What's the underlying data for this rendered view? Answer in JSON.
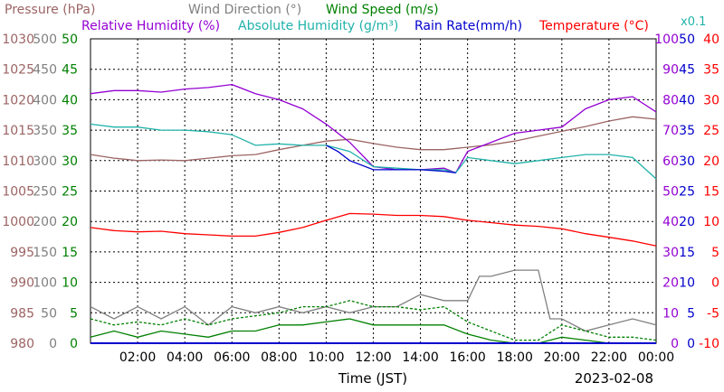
{
  "chart_data": {
    "type": "line",
    "date": "2023-02-08",
    "xlabel": "Time (JST)",
    "x_ticks": [
      "02:00",
      "04:00",
      "06:00",
      "08:00",
      "10:00",
      "12:00",
      "14:00",
      "16:00",
      "18:00",
      "20:00",
      "22:00",
      "00:00"
    ],
    "x_range": [
      0,
      24
    ],
    "grid": true,
    "legend": {
      "row1": [
        "Pressure (hPa)",
        "Wind Direction (°)",
        "Wind Speed (m/s)"
      ],
      "row2": [
        "Relative Humidity (%)",
        "Absolute Humidity (g/m³)",
        "Rain Rate(mm/h)",
        "Temperature (°C)"
      ],
      "abs_humidity_scale": "x0.1"
    },
    "axes": {
      "pressure": {
        "color": "#9c6464",
        "ticks": [
          "1030",
          "1025",
          "1020",
          "1015",
          "1010",
          "1005",
          "1000",
          "995",
          "990",
          "985",
          "980"
        ],
        "range": [
          980,
          1030
        ]
      },
      "wind_dir": {
        "color": "#808080",
        "ticks": [
          "500",
          "450",
          "400",
          "350",
          "300",
          "250",
          "200",
          "150",
          "100",
          "50",
          "0"
        ],
        "range": [
          0,
          500
        ]
      },
      "wind_speed": {
        "color": "#008000",
        "ticks": [
          "50",
          "45",
          "40",
          "35",
          "30",
          "25",
          "20",
          "15",
          "10",
          "5",
          "0"
        ],
        "range": [
          0,
          50
        ]
      },
      "rel_humidity": {
        "color": "#9400d3",
        "ticks": [
          "100",
          "90",
          "80",
          "70",
          "60",
          "50",
          "40",
          "30",
          "20",
          "10",
          "0"
        ],
        "range": [
          0,
          100
        ]
      },
      "rain_rate": {
        "color": "#0000cd",
        "ticks": [
          "50",
          "45",
          "40",
          "35",
          "30",
          "25",
          "20",
          "15",
          "10",
          "5",
          "0"
        ],
        "range": [
          0,
          50
        ]
      },
      "temperature": {
        "color": "#ff0000",
        "ticks": [
          "40",
          "35",
          "30",
          "25",
          "20",
          "15",
          "10",
          "5",
          "0",
          "-5",
          "-10"
        ],
        "range": [
          -10,
          40
        ]
      }
    },
    "series": [
      {
        "name": "Pressure (hPa)",
        "color": "#9c6464",
        "unit": "hPa",
        "points": [
          [
            0,
            1011
          ],
          [
            1,
            1010.4
          ],
          [
            2,
            1010
          ],
          [
            3,
            1010.1
          ],
          [
            4,
            1010
          ],
          [
            5,
            1010.4
          ],
          [
            6,
            1010.8
          ],
          [
            7,
            1011
          ],
          [
            8,
            1011.8
          ],
          [
            9,
            1012.5
          ],
          [
            10,
            1013.2
          ],
          [
            11,
            1013.5
          ],
          [
            12,
            1012.8
          ],
          [
            13,
            1012.2
          ],
          [
            14,
            1011.8
          ],
          [
            15,
            1011.8
          ],
          [
            16,
            1012.2
          ],
          [
            17,
            1012.6
          ],
          [
            18,
            1013.2
          ],
          [
            19,
            1014
          ],
          [
            20,
            1014.8
          ],
          [
            21,
            1015.6
          ],
          [
            22,
            1016.5
          ],
          [
            23,
            1017.2
          ],
          [
            24,
            1016.8
          ]
        ]
      },
      {
        "name": "Relative Humidity (%)",
        "color": "#9400d3",
        "unit": "%",
        "points": [
          [
            0,
            82
          ],
          [
            1,
            83
          ],
          [
            2,
            83
          ],
          [
            3,
            82.5
          ],
          [
            4,
            83.5
          ],
          [
            5,
            84
          ],
          [
            6,
            85
          ],
          [
            7,
            82
          ],
          [
            8,
            80
          ],
          [
            9,
            77
          ],
          [
            10,
            72
          ],
          [
            11,
            66
          ],
          [
            12,
            58
          ],
          [
            13,
            57
          ],
          [
            14,
            57
          ],
          [
            15,
            57.5
          ],
          [
            15.5,
            56
          ],
          [
            16,
            63
          ],
          [
            17,
            66
          ],
          [
            18,
            69
          ],
          [
            19,
            70
          ],
          [
            20,
            71
          ],
          [
            21,
            77
          ],
          [
            22,
            80
          ],
          [
            23,
            81
          ],
          [
            24,
            76
          ]
        ]
      },
      {
        "name": "Absolute Humidity (g/m³)",
        "color": "#20b2aa",
        "unit": "g/m³ x0.1",
        "points": [
          [
            0,
            72
          ],
          [
            1,
            71
          ],
          [
            2,
            71
          ],
          [
            3,
            70
          ],
          [
            4,
            70
          ],
          [
            5,
            69.5
          ],
          [
            6,
            68.5
          ],
          [
            7,
            65
          ],
          [
            8,
            65.5
          ],
          [
            9,
            65
          ],
          [
            10,
            65
          ],
          [
            11,
            63
          ],
          [
            12,
            58
          ],
          [
            13,
            57.5
          ],
          [
            14,
            57
          ],
          [
            15,
            57
          ],
          [
            15.5,
            56
          ],
          [
            16,
            61
          ],
          [
            17,
            60
          ],
          [
            18,
            59
          ],
          [
            19,
            60
          ],
          [
            20,
            61
          ],
          [
            21,
            62
          ],
          [
            22,
            62
          ],
          [
            23,
            61
          ],
          [
            24,
            54
          ]
        ]
      },
      {
        "name": "Rain Rate(mm/h)",
        "color": "#0000cd",
        "unit": "mm/h",
        "points": [
          [
            10,
            65
          ],
          [
            10.5,
            63
          ],
          [
            11,
            60
          ],
          [
            12,
            57
          ],
          [
            13,
            57
          ],
          [
            14,
            57
          ],
          [
            15,
            56.5
          ],
          [
            15.5,
            56
          ]
        ]
      },
      {
        "name": "Temperature (°C)",
        "color": "#ff0000",
        "unit": "°C",
        "points": [
          [
            0,
            9
          ],
          [
            1,
            8.5
          ],
          [
            2,
            8.3
          ],
          [
            3,
            8.4
          ],
          [
            4,
            8
          ],
          [
            5,
            7.8
          ],
          [
            6,
            7.6
          ],
          [
            7,
            7.6
          ],
          [
            8,
            8.2
          ],
          [
            9,
            9
          ],
          [
            10,
            10.2
          ],
          [
            11,
            11.3
          ],
          [
            12,
            11.2
          ],
          [
            13,
            11
          ],
          [
            14,
            11
          ],
          [
            15,
            10.8
          ],
          [
            16,
            10.2
          ],
          [
            17,
            9.8
          ],
          [
            18,
            9.4
          ],
          [
            19,
            9.2
          ],
          [
            20,
            8.8
          ],
          [
            21,
            8
          ],
          [
            22,
            7.4
          ],
          [
            23,
            6.8
          ],
          [
            24,
            6
          ]
        ]
      },
      {
        "name": "Wind Direction (°)",
        "color": "#808080",
        "unit": "°",
        "points": [
          [
            0,
            60
          ],
          [
            1,
            40
          ],
          [
            2,
            60
          ],
          [
            3,
            40
          ],
          [
            4,
            60
          ],
          [
            5,
            30
          ],
          [
            6,
            60
          ],
          [
            7,
            50
          ],
          [
            8,
            60
          ],
          [
            9,
            50
          ],
          [
            10,
            60
          ],
          [
            11,
            50
          ],
          [
            12,
            60
          ],
          [
            13,
            60
          ],
          [
            14,
            80
          ],
          [
            15,
            70
          ],
          [
            16,
            70
          ],
          [
            16.5,
            110
          ],
          [
            17,
            110
          ],
          [
            18,
            120
          ],
          [
            19,
            120
          ],
          [
            19.5,
            40
          ],
          [
            20,
            40
          ],
          [
            21,
            20
          ],
          [
            22,
            30
          ],
          [
            23,
            40
          ],
          [
            24,
            30
          ]
        ]
      },
      {
        "name": "Wind Speed (m/s)",
        "color": "#008000",
        "unit": "m/s",
        "points": [
          [
            0,
            4
          ],
          [
            1,
            3
          ],
          [
            2,
            3.5
          ],
          [
            3,
            3
          ],
          [
            4,
            4
          ],
          [
            5,
            3
          ],
          [
            6,
            4
          ],
          [
            7,
            4.5
          ],
          [
            8,
            5
          ],
          [
            9,
            6
          ],
          [
            10,
            6
          ],
          [
            11,
            7
          ],
          [
            12,
            6
          ],
          [
            13,
            6
          ],
          [
            14,
            5.5
          ],
          [
            15,
            6
          ],
          [
            16,
            3.5
          ],
          [
            17,
            2
          ],
          [
            18,
            0.5
          ],
          [
            19,
            0.5
          ],
          [
            20,
            3
          ],
          [
            21,
            2
          ],
          [
            22,
            1
          ],
          [
            23,
            1
          ],
          [
            24,
            0.5
          ]
        ]
      },
      {
        "name": "Wind Speed gust",
        "color": "#008000",
        "unit": "m/s",
        "points": [
          [
            0,
            1
          ],
          [
            1,
            2
          ],
          [
            2,
            1
          ],
          [
            3,
            2
          ],
          [
            4,
            1.5
          ],
          [
            5,
            1
          ],
          [
            6,
            2
          ],
          [
            7,
            2
          ],
          [
            8,
            3
          ],
          [
            9,
            3
          ],
          [
            10,
            3.5
          ],
          [
            11,
            4
          ],
          [
            12,
            3
          ],
          [
            13,
            3
          ],
          [
            14,
            3
          ],
          [
            15,
            3
          ],
          [
            16,
            1.5
          ],
          [
            17,
            0.5
          ],
          [
            18,
            0
          ],
          [
            19,
            0
          ],
          [
            20,
            1
          ],
          [
            21,
            0.5
          ],
          [
            22,
            0
          ],
          [
            23,
            0
          ],
          [
            24,
            0
          ]
        ]
      }
    ]
  }
}
